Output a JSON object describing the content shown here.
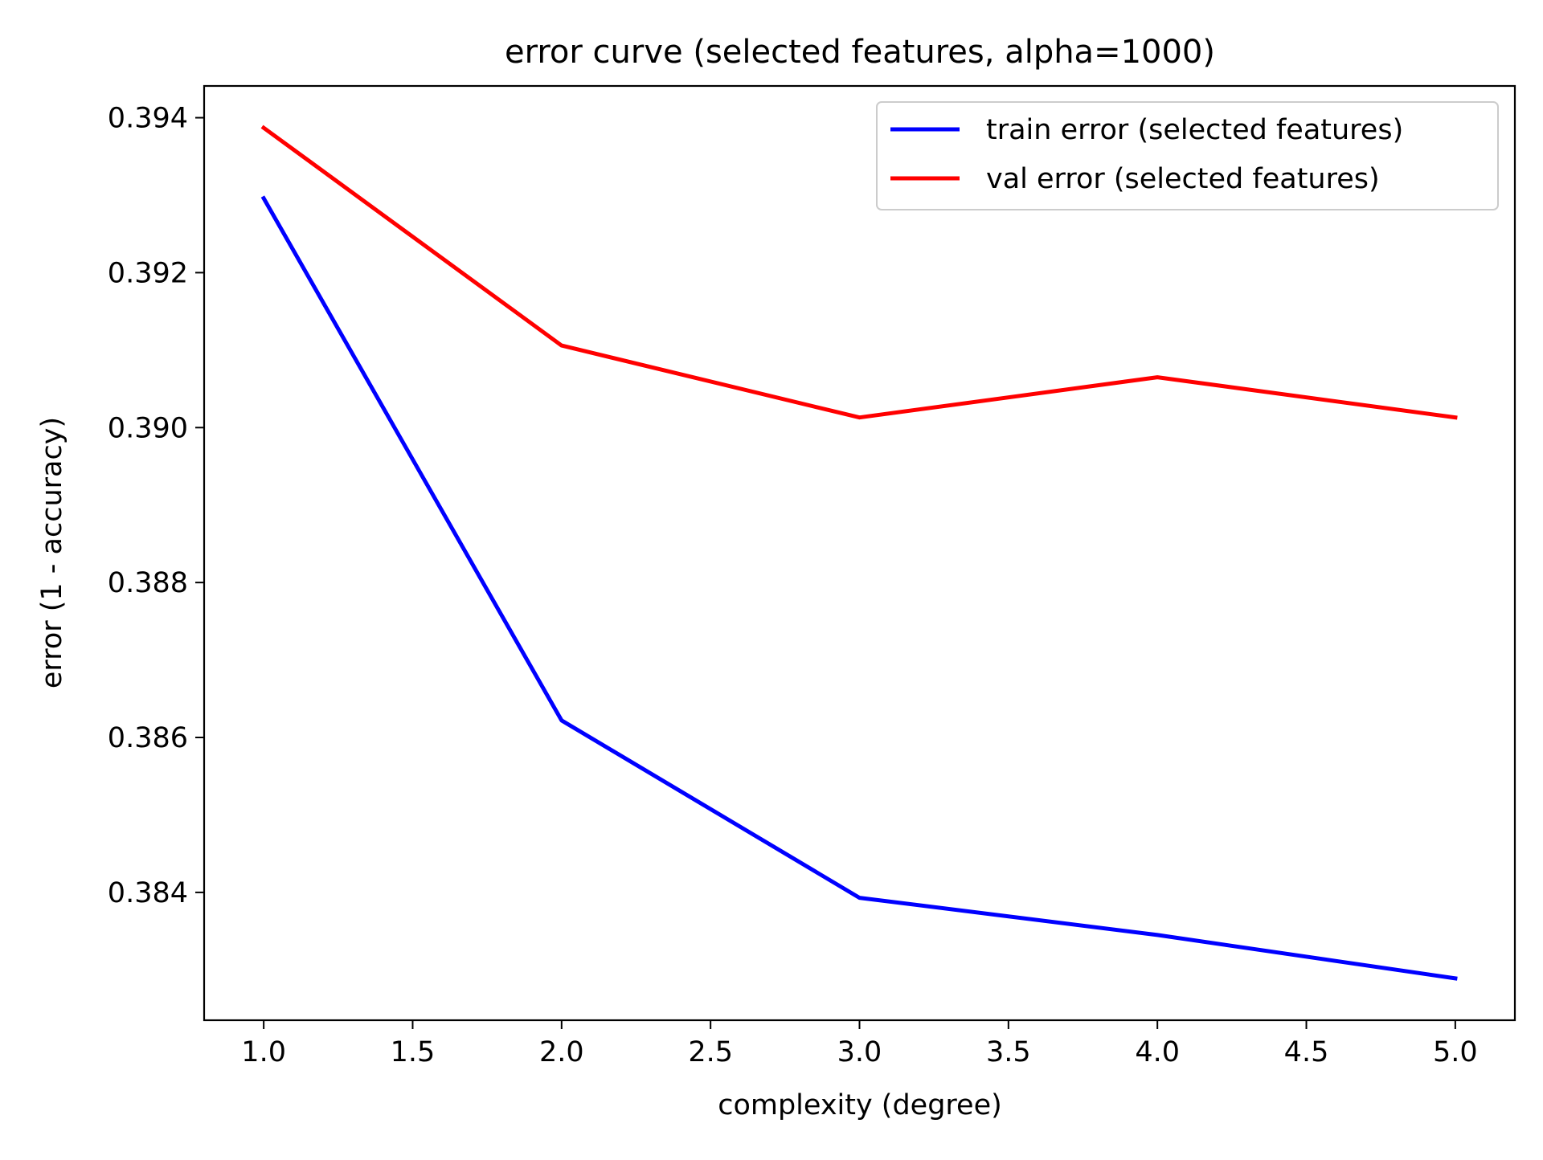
{
  "chart_data": {
    "type": "line",
    "title": "error curve (selected features, alpha=1000)",
    "xlabel": "complexity (degree)",
    "ylabel": "error (1 - accuracy)",
    "x": [
      1,
      2,
      3,
      4,
      5
    ],
    "series": [
      {
        "name": "train error (selected features)",
        "color": "#0000ff",
        "values": [
          0.39296,
          0.38622,
          0.38393,
          0.38345,
          0.38289
        ]
      },
      {
        "name": "val error (selected features)",
        "color": "#ff0000",
        "values": [
          0.39387,
          0.39106,
          0.39013,
          0.39065,
          0.39013
        ]
      }
    ],
    "xlim": [
      0.8,
      5.2
    ],
    "ylim": [
      0.38235,
      0.39441
    ],
    "xticks": [
      1.0,
      1.5,
      2.0,
      2.5,
      3.0,
      3.5,
      4.0,
      4.5,
      5.0
    ],
    "xtick_labels": [
      "1.0",
      "1.5",
      "2.0",
      "2.5",
      "3.0",
      "3.5",
      "4.0",
      "4.5",
      "5.0"
    ],
    "yticks": [
      0.384,
      0.386,
      0.388,
      0.39,
      0.392,
      0.394
    ],
    "ytick_labels": [
      "0.384",
      "0.386",
      "0.388",
      "0.390",
      "0.392",
      "0.394"
    ],
    "grid": false,
    "legend_position": "top-right"
  }
}
